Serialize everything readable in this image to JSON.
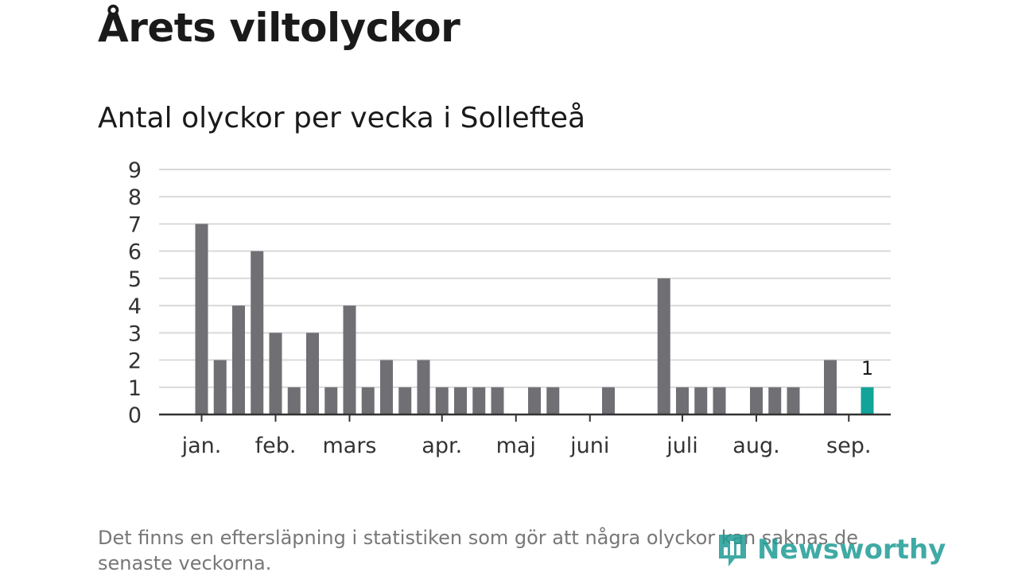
{
  "title": "Årets viltolyckor",
  "chart_data": {
    "type": "bar",
    "title": "Antal olyckor per vecka i Sollefteå",
    "xlabel": "",
    "ylabel": "",
    "weeks": [
      1,
      2,
      3,
      4,
      5,
      6,
      7,
      8,
      9,
      10,
      11,
      12,
      13,
      14,
      15,
      16,
      17,
      18,
      19,
      20,
      21,
      22,
      23,
      24,
      25,
      26,
      27,
      28,
      29,
      30,
      31,
      32,
      33,
      34,
      35,
      36,
      37
    ],
    "values": [
      7,
      2,
      4,
      6,
      3,
      1,
      3,
      1,
      4,
      1,
      2,
      1,
      2,
      1,
      1,
      1,
      1,
      0,
      1,
      1,
      0,
      0,
      1,
      0,
      0,
      5,
      1,
      1,
      1,
      0,
      1,
      1,
      1,
      0,
      2,
      0,
      1
    ],
    "highlight_last": true,
    "highlight_label": "1",
    "ylim": [
      0,
      9
    ],
    "yticks": [
      0,
      1,
      2,
      3,
      4,
      5,
      6,
      7,
      8,
      9
    ],
    "month_labels": [
      {
        "label": "jan.",
        "week": 1
      },
      {
        "label": "feb.",
        "week": 5
      },
      {
        "label": "mars",
        "week": 9
      },
      {
        "label": "apr.",
        "week": 14
      },
      {
        "label": "maj",
        "week": 18
      },
      {
        "label": "juni",
        "week": 22
      },
      {
        "label": "juli",
        "week": 27
      },
      {
        "label": "aug.",
        "week": 31
      },
      {
        "label": "sep.",
        "week": 36
      }
    ],
    "grid": true,
    "colors": {
      "bar": "#706f74",
      "highlight": "#12a39a",
      "grid": "#d9d9d9",
      "axis": "#333333"
    }
  },
  "note": "Det finns en eftersläpning i statistiken som gör att några olyckor kan saknas de senaste veckorna.",
  "logo": {
    "text": "Newsworthy",
    "icon": "newsworthy-logo-icon"
  }
}
